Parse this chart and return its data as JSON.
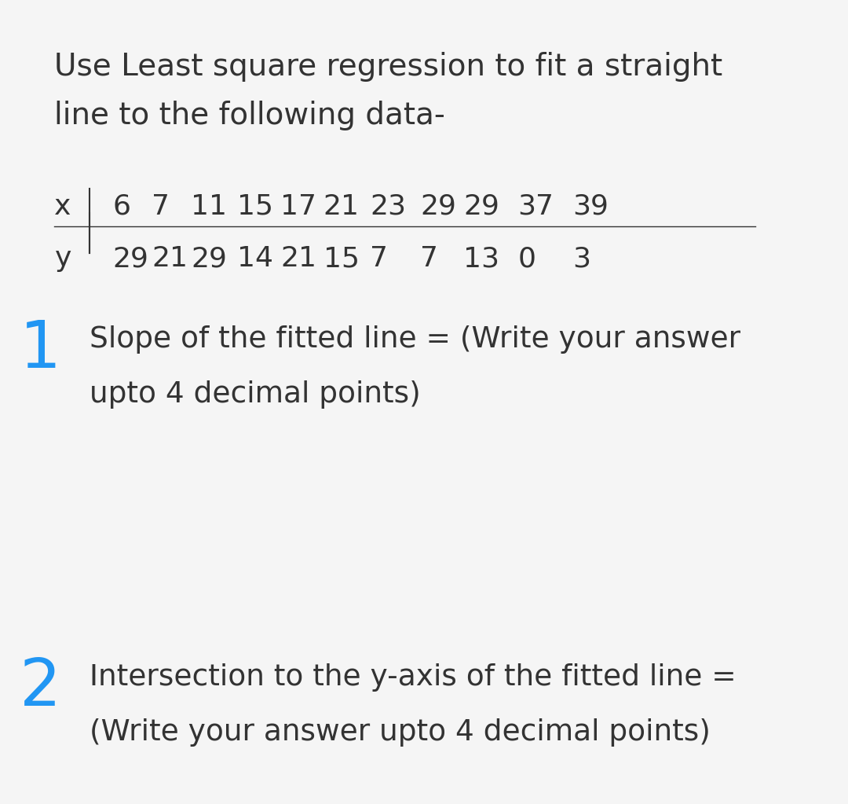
{
  "title_line1": "Use Least square regression to fit a straight",
  "title_line2": "line to the following data-",
  "x_label": "x",
  "y_label": "y",
  "x_values": [
    6,
    7,
    11,
    15,
    17,
    21,
    23,
    29,
    29,
    37,
    39
  ],
  "y_values": [
    29,
    21,
    29,
    14,
    21,
    15,
    7,
    7,
    13,
    0,
    3
  ],
  "q1_number": "1",
  "q1_line1": "Slope of the fitted line = (Write your answer",
  "q1_line2": "upto 4 decimal points)",
  "q2_number": "2",
  "q2_line1": "Intersection to the y-axis of the fitted line =",
  "q2_line2": "(Write your answer upto 4 decimal points)",
  "bg_color": "#f5f5f5",
  "text_color": "#333333",
  "accent_color": "#2196F3",
  "title_fontsize": 28,
  "table_fontsize": 26,
  "question_fontsize": 27,
  "number_fontsize": 60
}
